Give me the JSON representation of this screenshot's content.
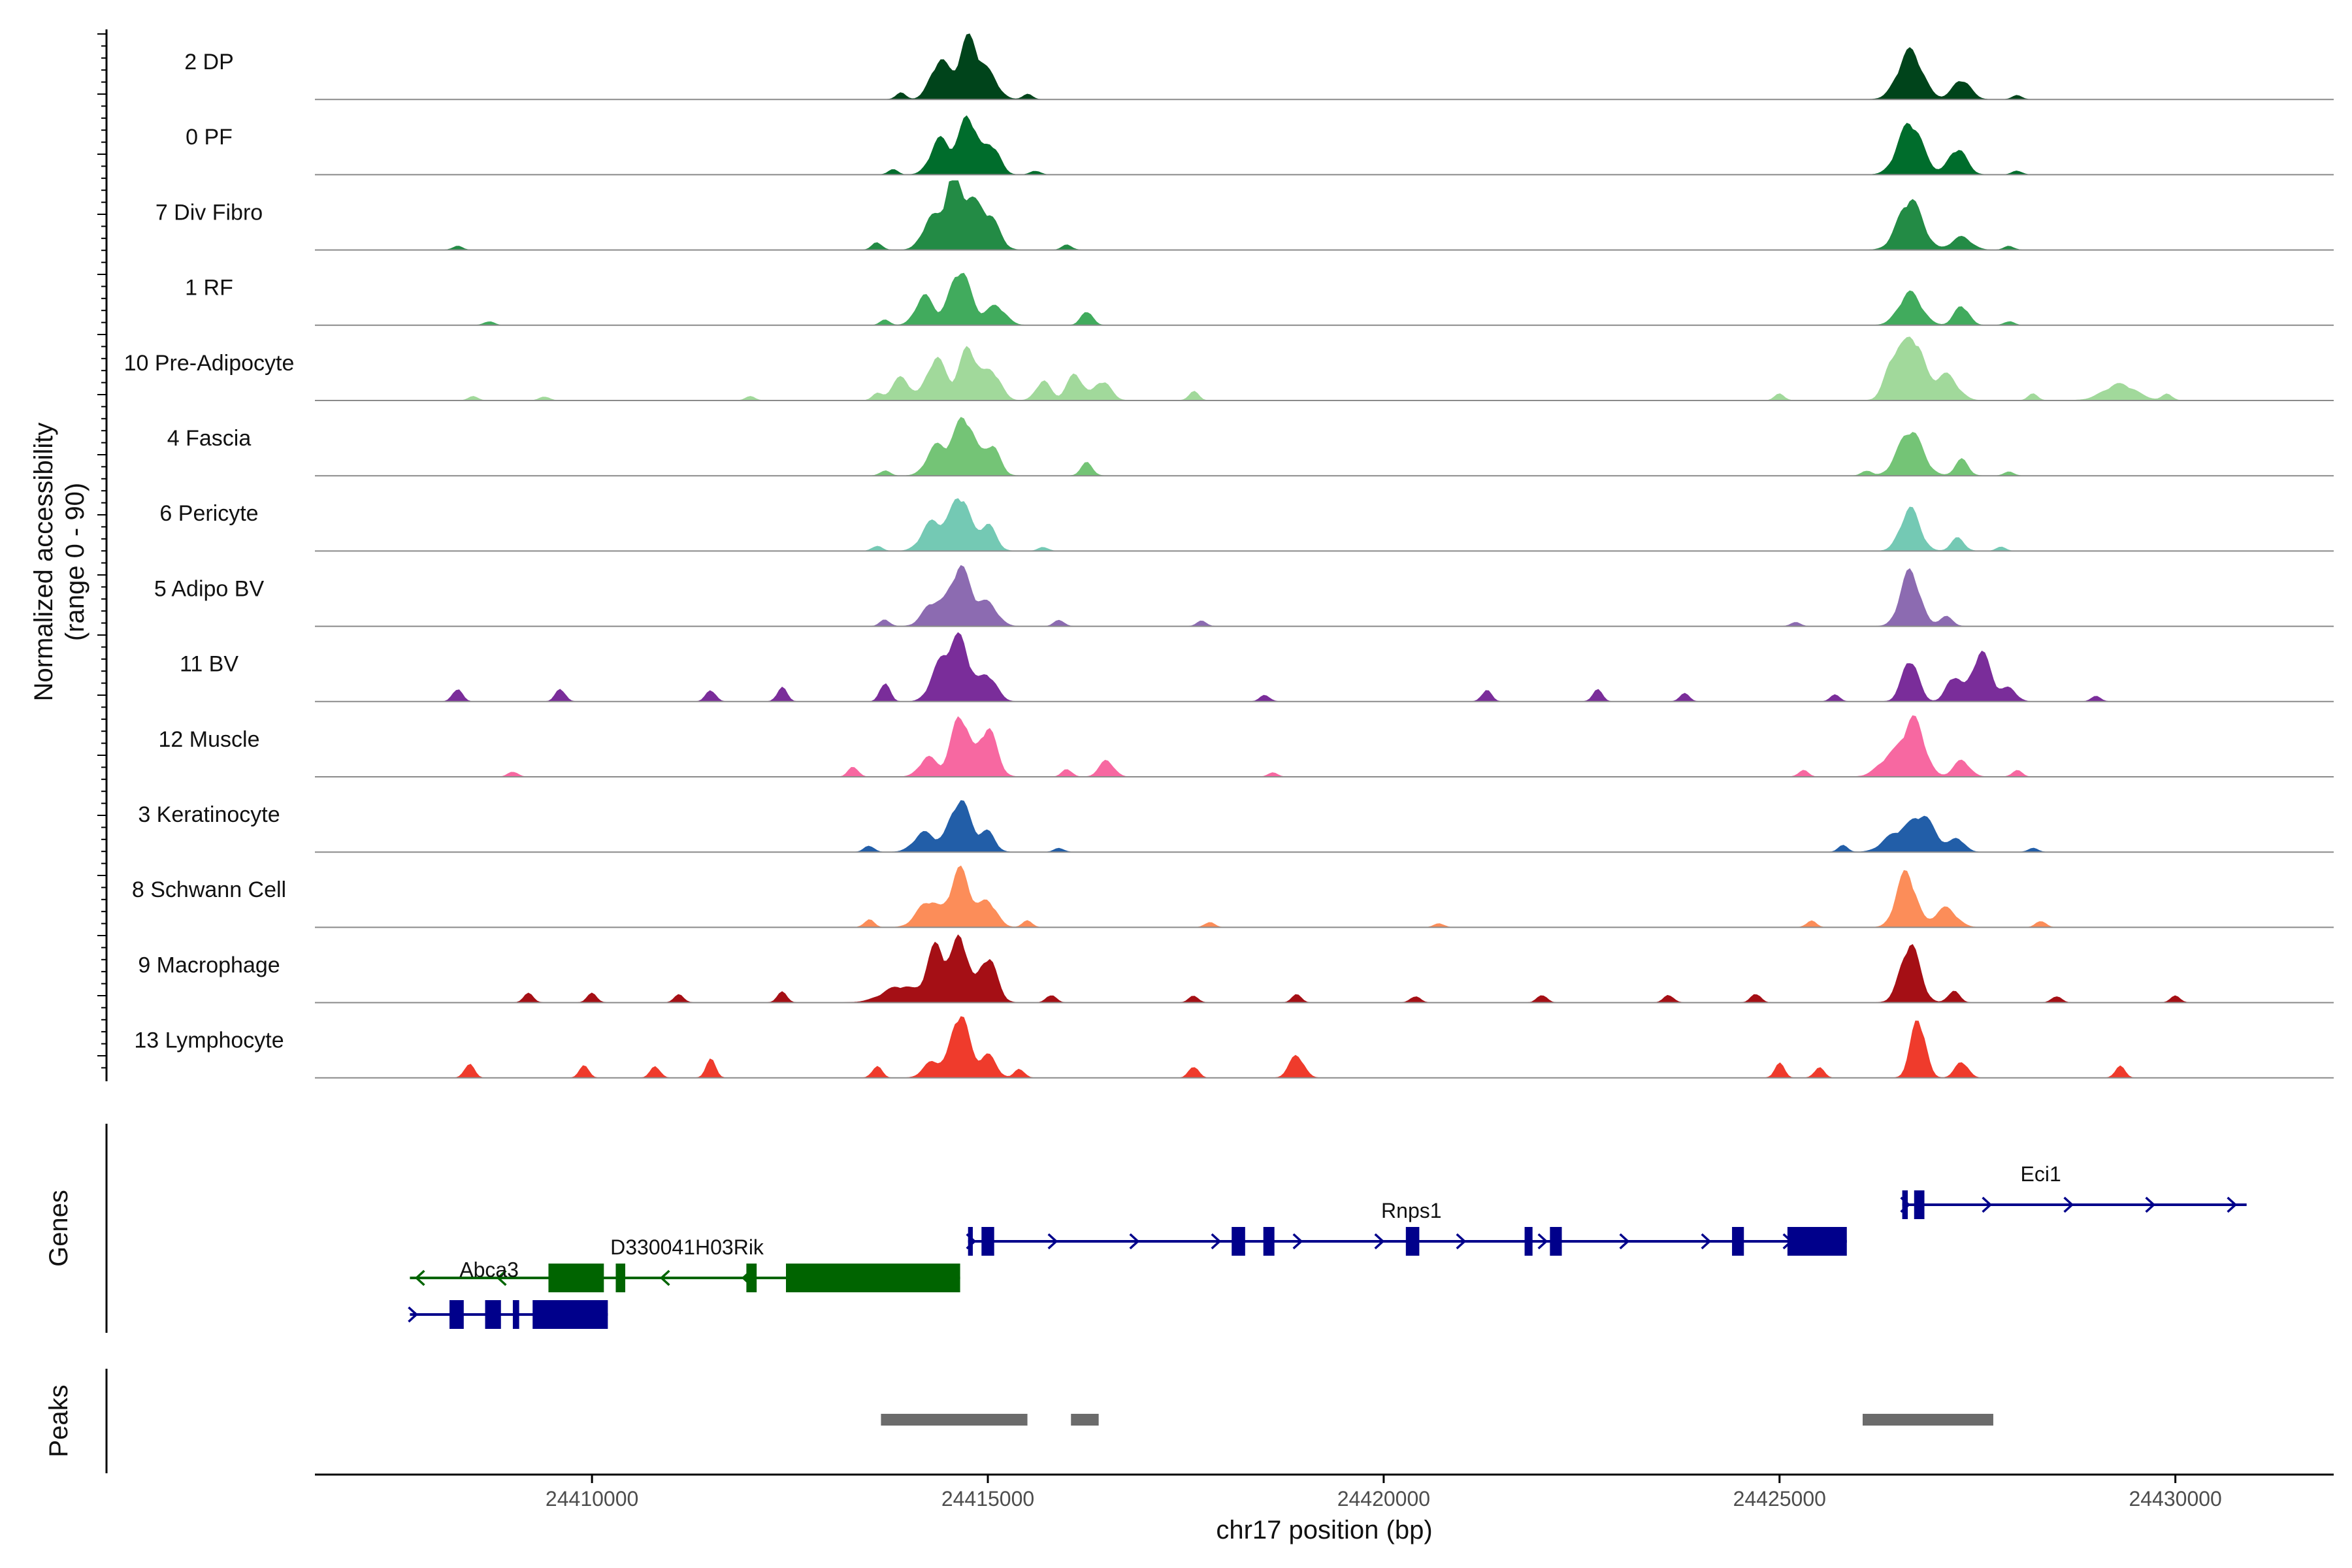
{
  "chart_data": {
    "type": "area",
    "title": "",
    "xlabel": "chr17 position (bp)",
    "ylabel": "Normalized accessibility\n(range 0 - 90)",
    "xlim": [
      24406500,
      24432000
    ],
    "ylim": [
      0,
      90
    ],
    "x_ticks": [
      24410000,
      24415000,
      24420000,
      24425000,
      24430000
    ],
    "x_tick_labels": [
      "24410000",
      "24415000",
      "24420000",
      "24425000",
      "24430000"
    ],
    "genes_label": "Genes",
    "peaks_label": "Peaks",
    "series": [
      {
        "name": "2 DP",
        "color": "#00441b",
        "peaks": [
          [
            24414400,
            60,
            120
          ],
          [
            24414750,
            90,
            110
          ],
          [
            24415000,
            40,
            120
          ],
          [
            24426650,
            75,
            150
          ],
          [
            24427300,
            30,
            110
          ]
        ],
        "noise": [
          [
            24413900,
            10
          ],
          [
            24415500,
            8
          ],
          [
            24428000,
            6
          ]
        ]
      },
      {
        "name": "0 PF",
        "color": "#006d2c",
        "peaks": [
          [
            24414400,
            55,
            120
          ],
          [
            24414750,
            90,
            110
          ],
          [
            24415050,
            45,
            100
          ],
          [
            24426650,
            80,
            150
          ],
          [
            24427250,
            40,
            110
          ]
        ],
        "noise": [
          [
            24413800,
            8
          ],
          [
            24415600,
            6
          ],
          [
            24428000,
            6
          ]
        ]
      },
      {
        "name": "7 Div Fibro",
        "color": "#238b45",
        "peaks": [
          [
            24414300,
            50,
            120
          ],
          [
            24414550,
            88,
            90
          ],
          [
            24414780,
            75,
            140
          ],
          [
            24415050,
            40,
            110
          ],
          [
            24426650,
            78,
            150
          ],
          [
            24427300,
            20,
            120
          ]
        ],
        "noise": [
          [
            24408300,
            6
          ],
          [
            24413600,
            12
          ],
          [
            24416000,
            8
          ],
          [
            24427900,
            6
          ]
        ]
      },
      {
        "name": "1 RF",
        "color": "#41ab5d",
        "peaks": [
          [
            24414200,
            45,
            110
          ],
          [
            24414650,
            85,
            130
          ],
          [
            24415100,
            30,
            120
          ],
          [
            24416250,
            22,
            70
          ],
          [
            24426650,
            50,
            140
          ],
          [
            24427300,
            30,
            90
          ]
        ],
        "noise": [
          [
            24408700,
            6
          ],
          [
            24413700,
            8
          ],
          [
            24427900,
            6
          ]
        ]
      },
      {
        "name": "10 Pre-Adipocyte",
        "color": "#a1d99b",
        "peaks": [
          [
            24413900,
            35,
            110
          ],
          [
            24414350,
            65,
            120
          ],
          [
            24414750,
            80,
            110
          ],
          [
            24415050,
            45,
            110
          ],
          [
            24415700,
            30,
            90
          ],
          [
            24416100,
            40,
            100
          ],
          [
            24416450,
            30,
            100
          ],
          [
            24426450,
            65,
            110
          ],
          [
            24426700,
            92,
            120
          ],
          [
            24427100,
            40,
            140
          ],
          [
            24429300,
            25,
            200
          ]
        ],
        "noise": [
          [
            24408500,
            6
          ],
          [
            24409400,
            6
          ],
          [
            24412000,
            6
          ],
          [
            24413600,
            10
          ],
          [
            24417600,
            14
          ],
          [
            24425000,
            10
          ],
          [
            24428200,
            10
          ],
          [
            24429900,
            10
          ]
        ]
      },
      {
        "name": "4 Fascia",
        "color": "#74c476",
        "peaks": [
          [
            24414350,
            45,
            120
          ],
          [
            24414700,
            90,
            130
          ],
          [
            24415050,
            45,
            100
          ],
          [
            24416250,
            20,
            70
          ],
          [
            24426650,
            70,
            150
          ],
          [
            24427300,
            25,
            80
          ]
        ],
        "noise": [
          [
            24413700,
            8
          ],
          [
            24426100,
            8
          ],
          [
            24427900,
            6
          ]
        ]
      },
      {
        "name": "6 Pericyte",
        "color": "#74c9b4",
        "peaks": [
          [
            24414300,
            45,
            130
          ],
          [
            24414650,
            85,
            120
          ],
          [
            24415000,
            40,
            100
          ],
          [
            24426650,
            65,
            120
          ],
          [
            24427250,
            20,
            80
          ]
        ],
        "noise": [
          [
            24413600,
            8
          ],
          [
            24415700,
            6
          ],
          [
            24427800,
            6
          ]
        ]
      },
      {
        "name": "5 Adipo BV",
        "color": "#8c6bb1",
        "peaks": [
          [
            24414300,
            35,
            120
          ],
          [
            24414650,
            90,
            130
          ],
          [
            24415000,
            35,
            120
          ],
          [
            24426650,
            85,
            120
          ],
          [
            24427100,
            15,
            80
          ]
        ],
        "noise": [
          [
            24413700,
            10
          ],
          [
            24415900,
            10
          ],
          [
            24417700,
            8
          ],
          [
            24425200,
            6
          ]
        ]
      },
      {
        "name": "11 BV",
        "color": "#7a2d9a",
        "peaks": [
          [
            24414400,
            55,
            120
          ],
          [
            24414650,
            92,
            120
          ],
          [
            24415000,
            40,
            110
          ],
          [
            24426650,
            65,
            100
          ],
          [
            24427200,
            38,
            90
          ],
          [
            24427550,
            75,
            120
          ],
          [
            24427900,
            20,
            90
          ]
        ],
        "noise": [
          [
            24408300,
            20
          ],
          [
            24409600,
            20
          ],
          [
            24411500,
            18
          ],
          [
            24412400,
            22
          ],
          [
            24413700,
            30
          ],
          [
            24418500,
            10
          ],
          [
            24421300,
            18
          ],
          [
            24422700,
            18
          ],
          [
            24423800,
            12
          ],
          [
            24425700,
            10
          ],
          [
            24429000,
            8
          ]
        ]
      },
      {
        "name": "12 Muscle",
        "color": "#f768a1",
        "peaks": [
          [
            24414250,
            30,
            110
          ],
          [
            24414650,
            95,
            110
          ],
          [
            24415000,
            75,
            110
          ],
          [
            24416500,
            25,
            90
          ],
          [
            24426400,
            30,
            150
          ],
          [
            24426700,
            85,
            130
          ],
          [
            24427300,
            25,
            100
          ]
        ],
        "noise": [
          [
            24409000,
            8
          ],
          [
            24413300,
            16
          ],
          [
            24416000,
            12
          ],
          [
            24418600,
            6
          ],
          [
            24425300,
            10
          ],
          [
            24428000,
            10
          ]
        ]
      },
      {
        "name": "3 Keratinocyte",
        "color": "#225ea8",
        "peaks": [
          [
            24414200,
            30,
            130
          ],
          [
            24414650,
            80,
            130
          ],
          [
            24415000,
            30,
            90
          ],
          [
            24426450,
            25,
            150
          ],
          [
            24426800,
            55,
            160
          ],
          [
            24427250,
            20,
            90
          ]
        ],
        "noise": [
          [
            24413500,
            10
          ],
          [
            24415900,
            6
          ],
          [
            24425800,
            10
          ],
          [
            24428200,
            6
          ]
        ]
      },
      {
        "name": "8 Schwann Cell",
        "color": "#fc8d59",
        "peaks": [
          [
            24414250,
            40,
            140
          ],
          [
            24414650,
            88,
            120
          ],
          [
            24415000,
            40,
            110
          ],
          [
            24426600,
            85,
            120
          ],
          [
            24427100,
            30,
            130
          ]
        ],
        "noise": [
          [
            24413500,
            12
          ],
          [
            24415500,
            10
          ],
          [
            24417800,
            8
          ],
          [
            24420700,
            6
          ],
          [
            24425400,
            10
          ],
          [
            24428300,
            10
          ]
        ]
      },
      {
        "name": "9 Macrophage",
        "color": "#a50f15",
        "peaks": [
          [
            24413900,
            25,
            220
          ],
          [
            24414350,
            85,
            110
          ],
          [
            24414650,
            100,
            100
          ],
          [
            24415000,
            70,
            110
          ],
          [
            24426650,
            90,
            120
          ],
          [
            24427200,
            18,
            70
          ]
        ],
        "noise": [
          [
            24409200,
            14
          ],
          [
            24410000,
            14
          ],
          [
            24411100,
            12
          ],
          [
            24412400,
            16
          ],
          [
            24415800,
            12
          ],
          [
            24417600,
            10
          ],
          [
            24418900,
            12
          ],
          [
            24420400,
            10
          ],
          [
            24422000,
            12
          ],
          [
            24423600,
            12
          ],
          [
            24424700,
            14
          ],
          [
            24428500,
            10
          ],
          [
            24430000,
            10
          ]
        ]
      },
      {
        "name": "13 Lymphocyte",
        "color": "#ef3b2c",
        "peaks": [
          [
            24414300,
            25,
            110
          ],
          [
            24414650,
            100,
            110
          ],
          [
            24415000,
            35,
            100
          ],
          [
            24418900,
            35,
            90
          ],
          [
            24426750,
            92,
            90
          ],
          [
            24427300,
            25,
            80
          ]
        ],
        "noise": [
          [
            24408450,
            22
          ],
          [
            24409900,
            18
          ],
          [
            24410800,
            18
          ],
          [
            24411500,
            28
          ],
          [
            24413600,
            18
          ],
          [
            24415400,
            14
          ],
          [
            24417600,
            18
          ],
          [
            24425000,
            22
          ],
          [
            24425500,
            16
          ],
          [
            24429300,
            18
          ]
        ]
      }
    ],
    "genes": [
      {
        "name": "D330041H03Rik",
        "strand": "-",
        "color": "#006400",
        "row": 1,
        "start": 24407700,
        "end": 24414650,
        "label_x": 24411200,
        "label_row": 1,
        "exons": [
          [
            24409450,
            24410150
          ],
          [
            24410300,
            24410420
          ],
          [
            24411950,
            24412080
          ],
          [
            24412450,
            24414650
          ]
        ]
      },
      {
        "name": "Abca3",
        "strand": "+",
        "color": "#00008b",
        "row": 2,
        "start": 24407700,
        "end": 24410200,
        "label_x": 24408700,
        "label_row": 1.62,
        "exons": [
          [
            24408200,
            24408380
          ],
          [
            24408650,
            24408850
          ],
          [
            24409000,
            24409080
          ],
          [
            24409250,
            24410200
          ]
        ]
      },
      {
        "name": "Rnps1",
        "strand": "+",
        "color": "#00008b",
        "row": 0,
        "start": 24414750,
        "end": 24425850,
        "label_x": 24420350,
        "label_row": 0,
        "exons": [
          [
            24414750,
            24414810
          ],
          [
            24414920,
            24415080
          ],
          [
            24418080,
            24418250
          ],
          [
            24418480,
            24418620
          ],
          [
            24420280,
            24420450
          ],
          [
            24421780,
            24421880
          ],
          [
            24422100,
            24422250
          ],
          [
            24424400,
            24424550
          ],
          [
            24425100,
            24425850
          ]
        ]
      },
      {
        "name": "Eci1",
        "strand": "+",
        "color": "#00008b",
        "row": -1,
        "start": 24426550,
        "end": 24430900,
        "label_x": 24428300,
        "label_row": -1,
        "exons": [
          [
            24426550,
            24426620
          ],
          [
            24426700,
            24426830
          ]
        ]
      }
    ],
    "peaks": [
      [
        24413650,
        24415500
      ],
      [
        24416050,
        24416400
      ],
      [
        24426050,
        24427700
      ]
    ]
  }
}
